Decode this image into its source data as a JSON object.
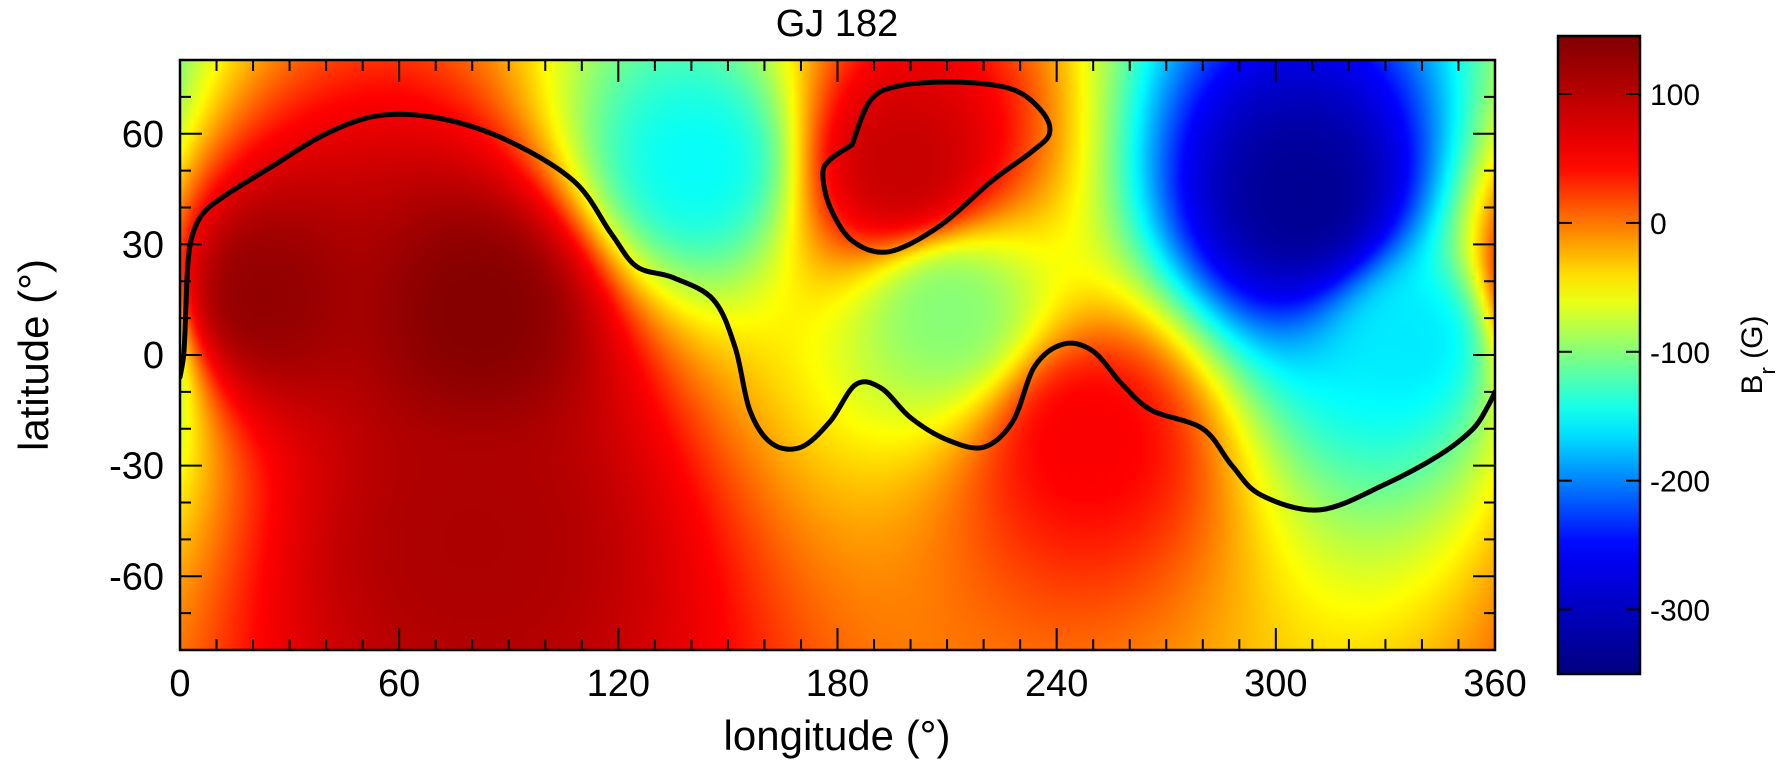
{
  "chart_data": {
    "type": "heatmap",
    "title": "GJ 182",
    "xlabel": "longitude",
    "xlabel_unit": "(°)",
    "ylabel": "latitude",
    "ylabel_unit": "(°)",
    "xlim": [
      0,
      360
    ],
    "ylim": [
      -80,
      80
    ],
    "x_ticks": [
      0,
      60,
      120,
      180,
      240,
      300,
      360
    ],
    "y_ticks": [
      -60,
      -30,
      0,
      30,
      60
    ],
    "colorbar": {
      "label_main": "B",
      "label_sub": "r",
      "label_unit": "(G)",
      "range": [
        -350,
        145
      ],
      "ticks": [
        -300,
        -200,
        -100,
        0,
        100
      ],
      "colormap": [
        "#00007f",
        "#0000ff",
        "#00ffff",
        "#ffff00",
        "#ff0000",
        "#7f0000"
      ]
    },
    "field_features": [
      {
        "lon": 82,
        "lat": 12,
        "value": 140
      },
      {
        "lon": 22,
        "lat": 16,
        "value": 130
      },
      {
        "lon": 198,
        "lat": 51,
        "value": 90
      },
      {
        "lon": 308,
        "lat": 42,
        "value": -335
      },
      {
        "lon": 142,
        "lat": 52,
        "value": -150
      },
      {
        "lon": 338,
        "lat": 4,
        "value": -160
      },
      {
        "lon": 210,
        "lat": 12,
        "value": -100
      },
      {
        "lon": 248,
        "lat": -22,
        "value": 50
      },
      {
        "lon": 80,
        "lat": -50,
        "value": 110
      }
    ],
    "zero_contours": [
      {
        "name": "main-neutral-line",
        "points": [
          [
            0,
            -6
          ],
          [
            1,
            0
          ],
          [
            1.5,
            10
          ],
          [
            2,
            22
          ],
          [
            3,
            31
          ],
          [
            6,
            38
          ],
          [
            12,
            43
          ],
          [
            25,
            51
          ],
          [
            40,
            60
          ],
          [
            55,
            65
          ],
          [
            72,
            64
          ],
          [
            90,
            58
          ],
          [
            108,
            47
          ],
          [
            118,
            33
          ],
          [
            125,
            24
          ],
          [
            135,
            21
          ],
          [
            146,
            15
          ],
          [
            152,
            2
          ],
          [
            156,
            -15
          ],
          [
            162,
            -24
          ],
          [
            170,
            -25
          ],
          [
            178,
            -18
          ],
          [
            185,
            -8
          ],
          [
            192,
            -9
          ],
          [
            200,
            -17
          ],
          [
            210,
            -23
          ],
          [
            220,
            -25
          ],
          [
            228,
            -18
          ],
          [
            234,
            -3
          ],
          [
            242,
            3
          ],
          [
            250,
            1
          ],
          [
            258,
            -8
          ],
          [
            266,
            -15
          ],
          [
            280,
            -20
          ],
          [
            288,
            -30
          ],
          [
            296,
            -38
          ],
          [
            312,
            -42
          ],
          [
            330,
            -35
          ],
          [
            345,
            -27
          ],
          [
            354,
            -20
          ],
          [
            358,
            -14
          ],
          [
            360,
            -10
          ]
        ]
      },
      {
        "name": "northern-positive-loop",
        "points": [
          [
            184,
            57
          ],
          [
            189,
            69
          ],
          [
            197,
            73
          ],
          [
            213,
            74
          ],
          [
            228,
            72
          ],
          [
            236,
            66
          ],
          [
            238,
            60
          ],
          [
            233,
            55
          ],
          [
            222,
            47
          ],
          [
            208,
            35
          ],
          [
            194,
            28
          ],
          [
            184,
            31
          ],
          [
            178,
            40
          ],
          [
            176,
            49
          ],
          [
            178,
            53
          ],
          [
            184,
            57
          ]
        ]
      }
    ]
  }
}
